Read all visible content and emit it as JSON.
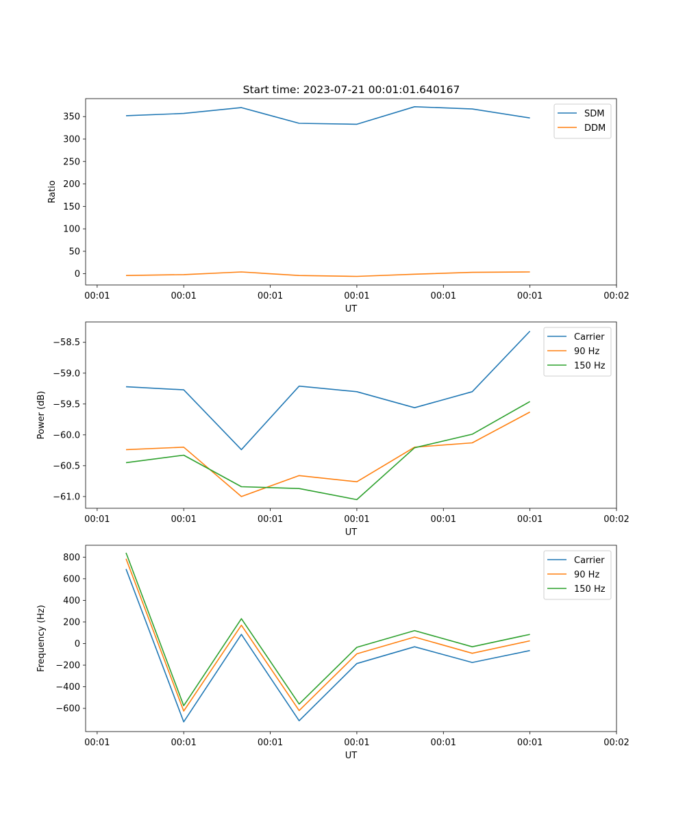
{
  "figure": {
    "title": "Start time: 2023-07-21 00:01:01.640167"
  },
  "colors": {
    "blue": "#1f77b4",
    "orange": "#ff7f0e",
    "green": "#2ca02c"
  },
  "chart_data": [
    {
      "type": "line",
      "title": "Start time: 2023-07-21 00:01:01.640167",
      "xlabel": "UT",
      "ylabel": "Ratio",
      "x": [
        0.5,
        1.5,
        2.5,
        3.5,
        4.5,
        5.5,
        6.5,
        7.5
      ],
      "xlim": [
        -0.2,
        9.0
      ],
      "xticks": [
        0,
        1.5,
        3,
        4.5,
        6,
        7.5,
        9
      ],
      "xtick_labels": [
        "00:01",
        "00:01",
        "00:01",
        "00:01",
        "00:01",
        "00:01",
        "00:02"
      ],
      "ylim": [
        -25,
        390
      ],
      "yticks": [
        0,
        50,
        100,
        150,
        200,
        250,
        300,
        350
      ],
      "ytick_labels": [
        "0",
        "50",
        "100",
        "150",
        "200",
        "250",
        "300",
        "350"
      ],
      "legend": "top-right",
      "series": [
        {
          "name": "SDM",
          "color": "blue",
          "values": [
            352,
            357,
            370,
            335,
            333,
            372,
            367,
            347
          ]
        },
        {
          "name": "DDM",
          "color": "orange",
          "values": [
            -4,
            -2,
            4,
            -4,
            -6,
            -1,
            3,
            4
          ]
        }
      ]
    },
    {
      "type": "line",
      "title": "",
      "xlabel": "UT",
      "ylabel": "Power (dB)",
      "x": [
        0.5,
        1.5,
        2.5,
        3.5,
        4.5,
        5.5,
        6.5,
        7.5
      ],
      "xlim": [
        -0.2,
        9.0
      ],
      "xticks": [
        0,
        1.5,
        3,
        4.5,
        6,
        7.5,
        9
      ],
      "xtick_labels": [
        "00:01",
        "00:01",
        "00:01",
        "00:01",
        "00:01",
        "00:01",
        "00:02"
      ],
      "ylim": [
        -61.19,
        -58.17
      ],
      "yticks": [
        -61.0,
        -60.5,
        -60.0,
        -59.5,
        -59.0,
        -58.5
      ],
      "ytick_labels": [
        "−61.0",
        "−60.5",
        "−60.0",
        "−59.5",
        "−59.0",
        "−58.5"
      ],
      "legend": "top-right",
      "series": [
        {
          "name": "Carrier",
          "color": "blue",
          "values": [
            -59.22,
            -59.27,
            -60.24,
            -59.21,
            -59.3,
            -59.56,
            -59.3,
            -58.32
          ]
        },
        {
          "name": "90 Hz",
          "color": "orange",
          "values": [
            -60.24,
            -60.2,
            -61.0,
            -60.66,
            -60.76,
            -60.2,
            -60.13,
            -59.63
          ]
        },
        {
          "name": "150 Hz",
          "color": "green",
          "values": [
            -60.45,
            -60.33,
            -60.84,
            -60.87,
            -61.05,
            -60.21,
            -59.99,
            -59.46
          ]
        }
      ]
    },
    {
      "type": "line",
      "title": "",
      "xlabel": "UT",
      "ylabel": "Frequency (Hz)",
      "x": [
        0.5,
        1.5,
        2.5,
        3.5,
        4.5,
        5.5,
        6.5,
        7.5
      ],
      "xlim": [
        -0.2,
        9.0
      ],
      "xticks": [
        0,
        1.5,
        3,
        4.5,
        6,
        7.5,
        9
      ],
      "xtick_labels": [
        "00:01",
        "00:01",
        "00:01",
        "00:01",
        "00:01",
        "00:01",
        "00:02"
      ],
      "ylim": [
        -815,
        910
      ],
      "yticks": [
        -600,
        -400,
        -200,
        0,
        200,
        400,
        600,
        800
      ],
      "ytick_labels": [
        "−600",
        "−400",
        "−200",
        "0",
        "200",
        "400",
        "600",
        "800"
      ],
      "legend": "top-right",
      "series": [
        {
          "name": "Carrier",
          "color": "blue",
          "values": [
            690,
            -725,
            85,
            -715,
            -185,
            -30,
            -175,
            -65
          ]
        },
        {
          "name": "90 Hz",
          "color": "orange",
          "values": [
            785,
            -625,
            170,
            -620,
            -95,
            60,
            -90,
            25
          ]
        },
        {
          "name": "150 Hz",
          "color": "green",
          "values": [
            840,
            -575,
            230,
            -560,
            -35,
            120,
            -30,
            85
          ]
        }
      ]
    }
  ]
}
